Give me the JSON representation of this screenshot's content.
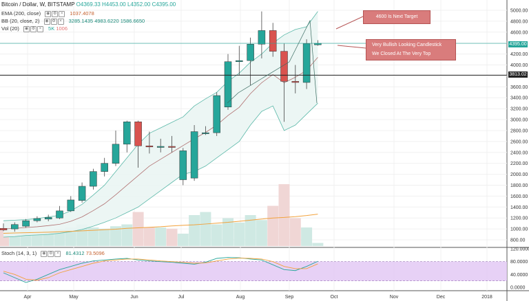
{
  "header": {
    "symbol": "Bitcoin / Dollar, W, BITSTAMP",
    "open": "O4369.33",
    "high": "H4453.00",
    "low": "L4352.00",
    "close": "C4395.00"
  },
  "legend": {
    "ema_label": "EMA (200, close)",
    "ema_value": "1037.4078",
    "bb_label": "BB (20, close, 2)",
    "bb_values": [
      "3285.1435",
      "4983.6220",
      "1586.6650"
    ],
    "vol_label": "Vol (20)",
    "vol_values": [
      "5K",
      "1006"
    ]
  },
  "stoch": {
    "label": "Stoch (14, 3, 1)",
    "k": "81.4312",
    "d": "73.5096",
    "axis": [
      "120.0000",
      "80.0000",
      "40.0000",
      "0.0000"
    ]
  },
  "annotations": {
    "target": "4600 Is Next Target",
    "bullish_line1": "Very Bullish Looking Candlestick",
    "bullish_line2": "We Closed At The Very Top"
  },
  "price_badges": {
    "current": "4395.00",
    "line": "3813.02"
  },
  "colors": {
    "up": "#26a69a",
    "down": "#d9534f",
    "callout": "#d97c7c",
    "bb_fill": "#eaf5f3",
    "stoch_band": "#e3c9f5"
  },
  "chart_data": {
    "type": "candlestick",
    "x_axis_labels": [
      "Apr",
      "May",
      "Jun",
      "Jul",
      "Aug",
      "Sep",
      "Oct",
      "Nov",
      "Dec",
      "2018"
    ],
    "y_axis_labels": [
      "5000.00",
      "4800.00",
      "4600.00",
      "4400.00",
      "4200.00",
      "4000.00",
      "3800.00",
      "3600.00",
      "3400.00",
      "3200.00",
      "3000.00",
      "2800.00",
      "2600.00",
      "2400.00",
      "2200.00",
      "2000.00",
      "1800.00",
      "1600.00",
      "1400.00",
      "1200.00",
      "1000.00",
      "800.00"
    ],
    "ylim": [
      700,
      5050
    ],
    "candles": [
      {
        "o": 1010,
        "h": 1100,
        "l": 960,
        "c": 980
      },
      {
        "o": 1000,
        "h": 1120,
        "l": 950,
        "c": 1080
      },
      {
        "o": 1050,
        "h": 1180,
        "l": 1020,
        "c": 1150
      },
      {
        "o": 1150,
        "h": 1230,
        "l": 1120,
        "c": 1190
      },
      {
        "o": 1180,
        "h": 1260,
        "l": 1140,
        "c": 1210
      },
      {
        "o": 1200,
        "h": 1420,
        "l": 1180,
        "c": 1330
      },
      {
        "o": 1330,
        "h": 1600,
        "l": 1310,
        "c": 1530
      },
      {
        "o": 1520,
        "h": 1850,
        "l": 1480,
        "c": 1780
      },
      {
        "o": 1780,
        "h": 2100,
        "l": 1720,
        "c": 2050
      },
      {
        "o": 2050,
        "h": 2300,
        "l": 1960,
        "c": 2200
      },
      {
        "o": 2200,
        "h": 2800,
        "l": 2150,
        "c": 2550
      },
      {
        "o": 2550,
        "h": 2980,
        "l": 2400,
        "c": 2960
      },
      {
        "o": 2960,
        "h": 2980,
        "l": 2120,
        "c": 2520
      },
      {
        "o": 2520,
        "h": 2780,
        "l": 2380,
        "c": 2500
      },
      {
        "o": 2500,
        "h": 2650,
        "l": 2400,
        "c": 2510
      },
      {
        "o": 2510,
        "h": 2700,
        "l": 2400,
        "c": 2500
      },
      {
        "o": 1900,
        "h": 2480,
        "l": 1800,
        "c": 2430
      },
      {
        "o": 1930,
        "h": 2900,
        "l": 1880,
        "c": 2780
      },
      {
        "o": 2750,
        "h": 2880,
        "l": 2720,
        "c": 2760
      },
      {
        "o": 2760,
        "h": 3500,
        "l": 2700,
        "c": 3440
      },
      {
        "o": 3230,
        "h": 4200,
        "l": 3180,
        "c": 4060
      },
      {
        "o": 4060,
        "h": 4350,
        "l": 3820,
        "c": 4080
      },
      {
        "o": 4080,
        "h": 4500,
        "l": 3630,
        "c": 4380
      },
      {
        "o": 4380,
        "h": 4980,
        "l": 4120,
        "c": 4630
      },
      {
        "o": 4630,
        "h": 4770,
        "l": 4150,
        "c": 4250
      },
      {
        "o": 4250,
        "h": 4390,
        "l": 2960,
        "c": 3700
      },
      {
        "o": 3700,
        "h": 4000,
        "l": 3480,
        "c": 3680
      },
      {
        "o": 3680,
        "h": 4470,
        "l": 3560,
        "c": 4390
      },
      {
        "o": 4369,
        "h": 4453,
        "l": 4352,
        "c": 4395
      }
    ],
    "volume": [
      0.25,
      0.2,
      0.3,
      0.22,
      0.25,
      0.28,
      0.3,
      0.35,
      0.3,
      0.28,
      0.32,
      0.35,
      0.55,
      0.3,
      0.3,
      0.28,
      0.2,
      0.5,
      0.55,
      0.35,
      0.45,
      0.38,
      0.5,
      0.42,
      0.65,
      1.0,
      0.45,
      0.3,
      0.05
    ],
    "stoch_k": [
      45,
      30,
      15,
      25,
      40,
      55,
      65,
      75,
      82,
      85,
      88,
      90,
      85,
      82,
      80,
      78,
      75,
      72,
      78,
      90,
      93,
      92,
      88,
      85,
      70,
      55,
      52,
      65,
      81
    ],
    "stoch_d": [
      50,
      40,
      25,
      22,
      30,
      45,
      55,
      65,
      75,
      82,
      85,
      88,
      88,
      85,
      82,
      80,
      78,
      75,
      76,
      82,
      88,
      91,
      90,
      88,
      80,
      65,
      58,
      58,
      73
    ]
  }
}
